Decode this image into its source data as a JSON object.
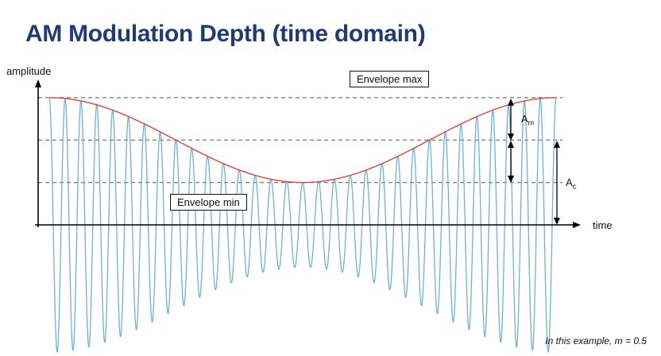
{
  "title": "AM Modulation Depth (time domain)",
  "axes": {
    "y_label": "amplitude",
    "x_label": "time"
  },
  "annotations": {
    "envelope_max": "Envelope max",
    "envelope_min": "Envelope min",
    "am_label_main": "A",
    "am_label_sub": "m",
    "ac_label_main": "A",
    "ac_label_sub": "c"
  },
  "footnote": "In this example, m = 0.5",
  "colors": {
    "title": "#1f3a7a",
    "carrier": "#6fb0d8",
    "envelope": "#e0443a",
    "guides": "#555555",
    "axis": "#000000"
  },
  "signal": {
    "modulation_index": 0.5,
    "carrier_cycles": 32,
    "modulation_cycles": 1
  }
}
